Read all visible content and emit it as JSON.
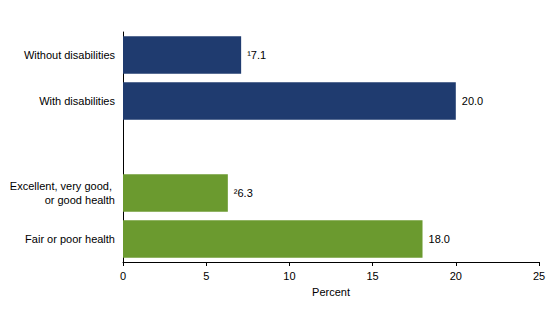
{
  "chart_data": {
    "type": "bar",
    "orientation": "horizontal",
    "categories": [
      "Without disabilities",
      "With disabilities",
      null,
      "Excellent, very good, or good health",
      "Fair or poor health"
    ],
    "values": [
      7.1,
      20.0,
      null,
      6.3,
      18.0
    ],
    "value_labels": [
      "¹7.1",
      "20.0",
      null,
      "²6.3",
      "18.0"
    ],
    "colors": [
      "#1f3b6f",
      "#1f3b6f",
      null,
      "#6b9a2f",
      "#6b9a2f"
    ],
    "x_label": "Percent",
    "xlim": [
      0,
      25
    ],
    "xticks": [
      0,
      5,
      10,
      15,
      20,
      25
    ],
    "grid": false,
    "data_labels": true
  }
}
